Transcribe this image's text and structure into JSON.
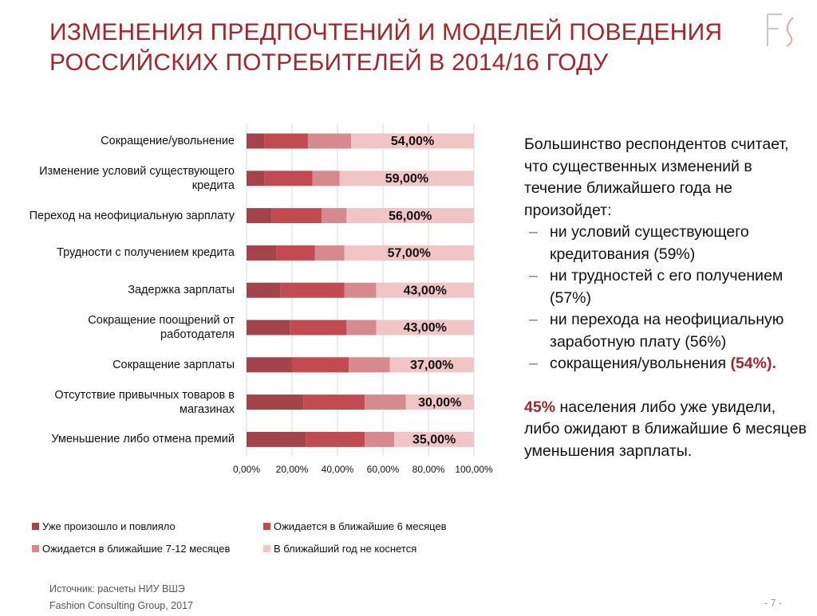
{
  "title": [
    "ИЗМЕНЕНИЯ ПРЕДПОЧТЕНИЙ И МОДЕЛЕЙ ПОВЕДЕНИЯ",
    "РОССИЙСКИХ ПОТРЕБИТЕЛЕЙ В 2014/16 ГОДУ"
  ],
  "chart_data": {
    "type": "stacked_barh",
    "categories": [
      "Сокращение/увольнение",
      "Изменение условий существующего кредита",
      "Переход на неофициальную зарплату",
      "Трудности с получением кредита",
      "Задержка зарплаты",
      "Сокращение поощрений от работодателя",
      "Сокращение зарплаты",
      "Отсутствие привычных товаров в магазинах",
      "Уменьшение либо отмена премий"
    ],
    "series": [
      {
        "name": "Уже произошло и повлияло",
        "color": "#a3444a",
        "values": [
          8,
          8,
          11,
          13,
          15,
          19,
          20,
          25,
          26
        ]
      },
      {
        "name": "Ожидается в ближайшие 6 месяцев",
        "color": "#c24a51",
        "values": [
          19,
          21,
          22,
          17,
          28,
          25,
          25,
          27,
          26
        ]
      },
      {
        "name": "Ожидается в ближайшие 7-12 месяцев",
        "color": "#d78a8e",
        "values": [
          19,
          12,
          11,
          13,
          14,
          13,
          18,
          18,
          13
        ]
      },
      {
        "name": "В ближайший год не коснется",
        "color": "#f1c5c6",
        "values": [
          54,
          59,
          56,
          57,
          43,
          43,
          37,
          30,
          35
        ],
        "value_labels": [
          "54,00%",
          "59,00%",
          "56,00%",
          "57,00%",
          "43,00%",
          "43,00%",
          "37,00%",
          "30,00%",
          "35,00%"
        ]
      }
    ],
    "xlim": [
      0,
      100
    ],
    "xticks": [
      {
        "value": 0,
        "label": "0,00%"
      },
      {
        "value": 20,
        "label": "20,00%"
      },
      {
        "value": 40,
        "label": "40,00%"
      },
      {
        "value": 60,
        "label": "60,00%"
      },
      {
        "value": 80,
        "label": "80,00%"
      },
      {
        "value": 100,
        "label": "100,00%"
      }
    ],
    "grid": true
  },
  "side_text": {
    "intro": "Большинство респондентов считает, что существенных изменений в течение ближайшего года не произойдет:",
    "bullets": [
      {
        "text": "ни условий существующего кредитования (59%)"
      },
      {
        "text": "ни трудностей с его получением (57%)"
      },
      {
        "text": "ни перехода на неофициальную заработную плату (56%)"
      },
      {
        "text": "сокращения/увольнения",
        "highlight": "(54%)."
      }
    ],
    "note": {
      "highlight": "45%",
      "text": "населения либо уже увидели, либо ожидают в ближайшие 6 месяцев уменьшения зарплаты."
    }
  },
  "footer": {
    "source": "Источник: расчеты НИУ ВШЭ",
    "company": "Fashion Consulting Group, 2017",
    "page": "- 7 -"
  }
}
